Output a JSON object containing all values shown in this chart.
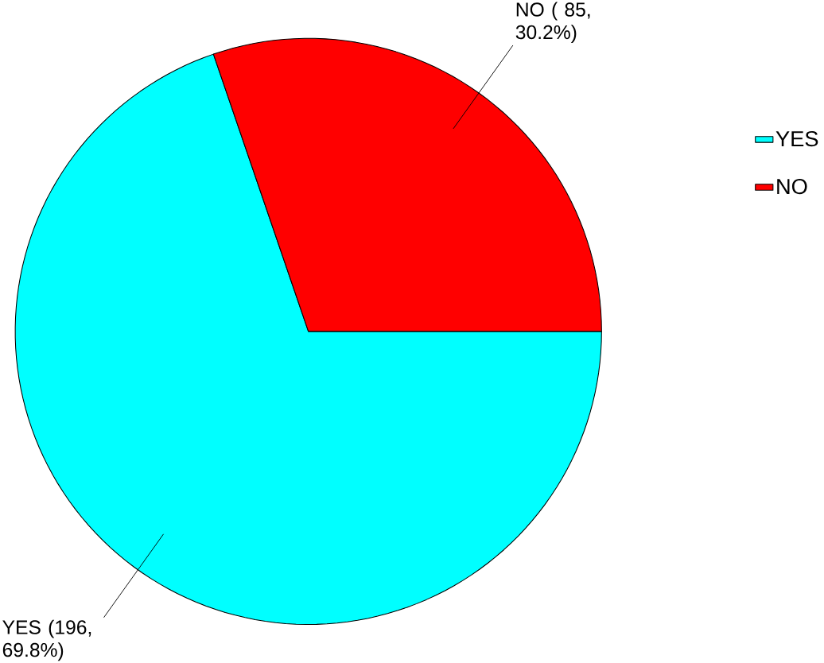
{
  "chart_data": {
    "type": "pie",
    "categories": [
      "YES",
      "NO"
    ],
    "values": [
      196,
      85
    ],
    "colors": [
      "#00ffff",
      "#ff0000"
    ],
    "value_labels": [
      "YES (196, 69.8%)",
      "NO ( 85, 30.2%)"
    ],
    "legend": "right"
  }
}
